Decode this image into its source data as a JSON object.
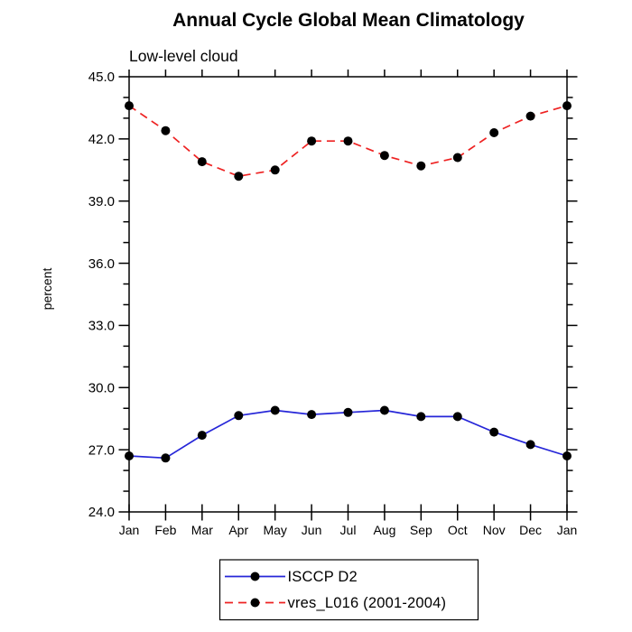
{
  "page": {
    "background_color": "#ffffff",
    "text_color": "#000000"
  },
  "chart_data": {
    "type": "line",
    "title": "Annual Cycle Global Mean Climatology",
    "subtitle": "Low-level cloud",
    "xlabel": "",
    "ylabel": "percent",
    "categories": [
      "Jan",
      "Feb",
      "Mar",
      "Apr",
      "May",
      "Jun",
      "Jul",
      "Aug",
      "Sep",
      "Oct",
      "Nov",
      "Dec",
      "Jan"
    ],
    "ylim": [
      24.0,
      45.0
    ],
    "ytick_major_step": 3.0,
    "ytick_minor_step": 1.0,
    "ytick_labels": [
      "24.0",
      "27.0",
      "30.0",
      "33.0",
      "36.0",
      "39.0",
      "42.0",
      "45.0"
    ],
    "grid": false,
    "frame_color": "#000000",
    "legend_position": "bottom-center",
    "series": [
      {
        "name": "ISCCP D2",
        "color": "#2626d8",
        "line_style": "solid",
        "marker": "filled-circle",
        "marker_color": "#000000",
        "values": [
          26.7,
          26.6,
          27.7,
          28.65,
          28.9,
          28.7,
          28.8,
          28.9,
          28.6,
          28.6,
          27.85,
          27.25,
          26.7
        ]
      },
      {
        "name": "vres_L016 (2001-2004)",
        "color": "#ee2222",
        "line_style": "dashed",
        "marker": "filled-circle",
        "marker_color": "#000000",
        "values": [
          43.6,
          42.4,
          40.9,
          40.2,
          40.5,
          41.9,
          41.9,
          41.2,
          40.7,
          41.1,
          42.3,
          43.1,
          43.6
        ]
      }
    ]
  }
}
